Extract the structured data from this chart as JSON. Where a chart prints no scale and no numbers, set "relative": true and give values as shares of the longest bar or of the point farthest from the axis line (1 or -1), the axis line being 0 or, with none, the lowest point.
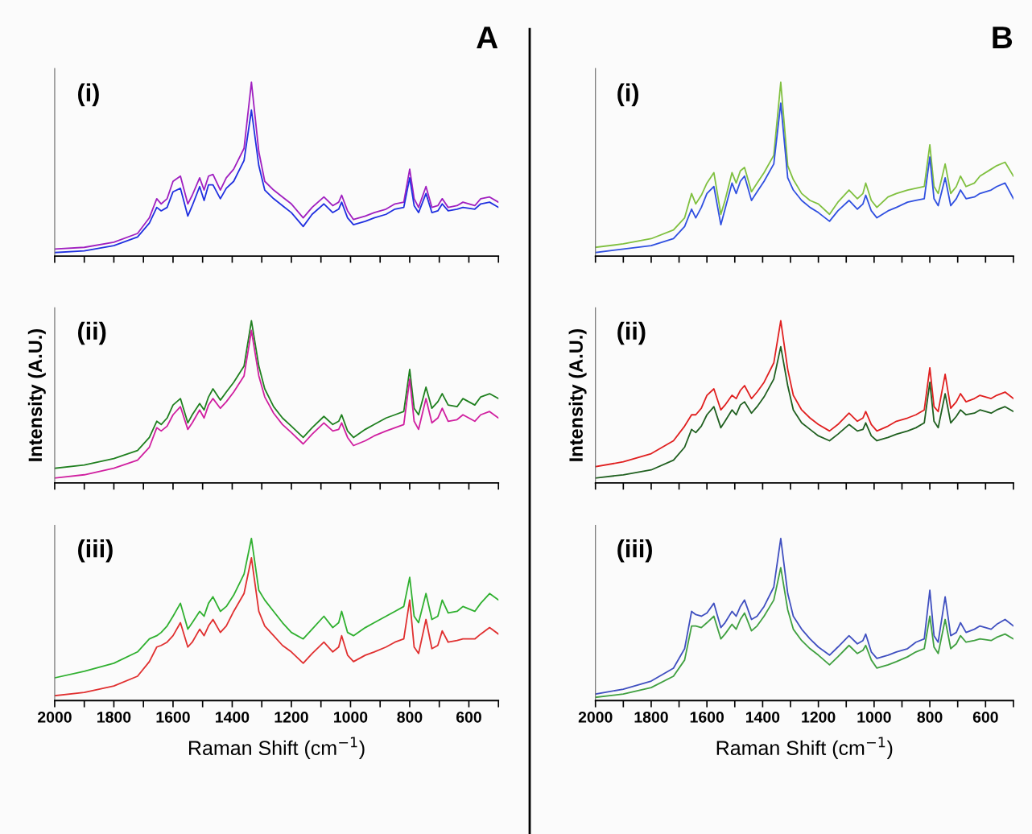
{
  "chart_data": [
    {
      "type": "line",
      "title": "A",
      "relative": true,
      "tick_labels": false,
      "grid": false,
      "xlim": [
        2000,
        500
      ],
      "xticks": [
        2000,
        {
          "value": 1900,
          "label": null
        },
        1800,
        {
          "value": 1700,
          "label": null
        },
        1600,
        {
          "value": 1500,
          "label": null
        },
        1400,
        {
          "value": 1300,
          "label": null
        },
        1200,
        {
          "value": 1100,
          "label": null
        },
        1000,
        {
          "value": 900,
          "label": null
        },
        800,
        {
          "value": 700,
          "label": null
        },
        600,
        {
          "value": 500,
          "label": null
        }
      ],
      "annotations": [
        "(i)"
      ],
      "x": [
        2000,
        1900,
        1800,
        1720,
        1680,
        1655,
        1640,
        1620,
        1600,
        1575,
        1550,
        1535,
        1510,
        1495,
        1480,
        1465,
        1440,
        1420,
        1395,
        1360,
        1335,
        1310,
        1290,
        1260,
        1230,
        1200,
        1160,
        1130,
        1090,
        1060,
        1040,
        1030,
        1010,
        990,
        950,
        920,
        880,
        850,
        820,
        800,
        785,
        770,
        745,
        725,
        705,
        690,
        670,
        640,
        620,
        580,
        560,
        530,
        500
      ],
      "series": [
        {
          "color": "#a020c0",
          "values": [
            0.04,
            0.05,
            0.08,
            0.13,
            0.22,
            0.33,
            0.3,
            0.33,
            0.43,
            0.46,
            0.3,
            0.35,
            0.45,
            0.38,
            0.46,
            0.47,
            0.38,
            0.45,
            0.5,
            0.62,
            1.0,
            0.6,
            0.43,
            0.38,
            0.34,
            0.3,
            0.22,
            0.28,
            0.34,
            0.29,
            0.31,
            0.35,
            0.26,
            0.21,
            0.23,
            0.25,
            0.27,
            0.3,
            0.31,
            0.5,
            0.33,
            0.28,
            0.4,
            0.28,
            0.29,
            0.33,
            0.28,
            0.29,
            0.31,
            0.29,
            0.33,
            0.34,
            0.31
          ]
        },
        {
          "color": "#2030e0",
          "values": [
            0.02,
            0.03,
            0.06,
            0.11,
            0.19,
            0.28,
            0.26,
            0.28,
            0.37,
            0.39,
            0.23,
            0.29,
            0.4,
            0.32,
            0.41,
            0.41,
            0.33,
            0.39,
            0.43,
            0.55,
            0.84,
            0.52,
            0.38,
            0.33,
            0.29,
            0.25,
            0.17,
            0.24,
            0.3,
            0.25,
            0.27,
            0.31,
            0.22,
            0.18,
            0.2,
            0.22,
            0.24,
            0.27,
            0.28,
            0.45,
            0.29,
            0.25,
            0.36,
            0.25,
            0.26,
            0.3,
            0.26,
            0.27,
            0.28,
            0.27,
            0.3,
            0.31,
            0.28
          ]
        }
      ]
    },
    {
      "type": "line",
      "ylabel": "Intensity (A.U.)",
      "relative": true,
      "tick_labels": false,
      "grid": false,
      "xlim": [
        2000,
        500
      ],
      "xticks": [
        2000,
        {
          "value": 1900,
          "label": null
        },
        1800,
        {
          "value": 1700,
          "label": null
        },
        1600,
        {
          "value": 1500,
          "label": null
        },
        1400,
        {
          "value": 1300,
          "label": null
        },
        1200,
        {
          "value": 1100,
          "label": null
        },
        1000,
        {
          "value": 900,
          "label": null
        },
        800,
        {
          "value": 700,
          "label": null
        },
        600,
        {
          "value": 500,
          "label": null
        }
      ],
      "annotations": [
        "(ii)"
      ],
      "x": [
        2000,
        1900,
        1800,
        1720,
        1680,
        1655,
        1640,
        1620,
        1600,
        1575,
        1550,
        1535,
        1510,
        1495,
        1480,
        1465,
        1440,
        1420,
        1395,
        1360,
        1335,
        1310,
        1290,
        1260,
        1230,
        1200,
        1160,
        1130,
        1090,
        1060,
        1040,
        1030,
        1010,
        990,
        950,
        920,
        880,
        850,
        820,
        800,
        785,
        770,
        745,
        725,
        705,
        690,
        670,
        640,
        620,
        580,
        560,
        530,
        500
      ],
      "series": [
        {
          "color": "#208020",
          "values": [
            0.09,
            0.11,
            0.15,
            0.2,
            0.28,
            0.38,
            0.36,
            0.4,
            0.48,
            0.52,
            0.37,
            0.42,
            0.49,
            0.45,
            0.53,
            0.58,
            0.51,
            0.56,
            0.62,
            0.72,
            1.0,
            0.72,
            0.58,
            0.47,
            0.4,
            0.35,
            0.28,
            0.34,
            0.41,
            0.36,
            0.38,
            0.42,
            0.32,
            0.28,
            0.33,
            0.36,
            0.4,
            0.42,
            0.44,
            0.7,
            0.46,
            0.42,
            0.59,
            0.46,
            0.5,
            0.55,
            0.48,
            0.47,
            0.52,
            0.48,
            0.53,
            0.55,
            0.52
          ]
        },
        {
          "color": "#d020a0",
          "values": [
            0.03,
            0.05,
            0.09,
            0.14,
            0.22,
            0.34,
            0.32,
            0.35,
            0.42,
            0.47,
            0.33,
            0.37,
            0.45,
            0.4,
            0.48,
            0.52,
            0.46,
            0.5,
            0.56,
            0.66,
            0.94,
            0.66,
            0.53,
            0.43,
            0.36,
            0.31,
            0.24,
            0.3,
            0.37,
            0.32,
            0.33,
            0.37,
            0.28,
            0.23,
            0.26,
            0.29,
            0.32,
            0.34,
            0.36,
            0.64,
            0.38,
            0.33,
            0.52,
            0.37,
            0.4,
            0.46,
            0.38,
            0.39,
            0.42,
            0.38,
            0.42,
            0.44,
            0.4
          ]
        }
      ]
    },
    {
      "type": "line",
      "xlabel": "Raman Shift (cm$^{−1}$)",
      "relative": true,
      "tick_labels": "x",
      "grid": false,
      "xlim": [
        2000,
        500
      ],
      "xticks": [
        2000,
        {
          "value": 1900,
          "label": null
        },
        1800,
        {
          "value": 1700,
          "label": null
        },
        1600,
        {
          "value": 1500,
          "label": null
        },
        1400,
        {
          "value": 1300,
          "label": null
        },
        1200,
        {
          "value": 1100,
          "label": null
        },
        1000,
        {
          "value": 900,
          "label": null
        },
        800,
        {
          "value": 700,
          "label": null
        },
        600,
        {
          "value": 500,
          "label": null
        }
      ],
      "annotations": [
        "(iii)"
      ],
      "x": [
        2000,
        1900,
        1800,
        1720,
        1680,
        1655,
        1640,
        1620,
        1600,
        1575,
        1550,
        1535,
        1510,
        1495,
        1480,
        1465,
        1440,
        1420,
        1395,
        1360,
        1335,
        1310,
        1290,
        1260,
        1230,
        1200,
        1160,
        1130,
        1090,
        1060,
        1040,
        1030,
        1010,
        990,
        950,
        920,
        880,
        850,
        820,
        800,
        785,
        770,
        745,
        725,
        705,
        690,
        670,
        640,
        620,
        580,
        560,
        530,
        500
      ],
      "series": [
        {
          "color": "#30b030",
          "values": [
            0.14,
            0.18,
            0.23,
            0.3,
            0.38,
            0.4,
            0.42,
            0.46,
            0.52,
            0.6,
            0.44,
            0.48,
            0.55,
            0.52,
            0.6,
            0.64,
            0.55,
            0.58,
            0.65,
            0.78,
            1.0,
            0.68,
            0.62,
            0.55,
            0.48,
            0.42,
            0.38,
            0.44,
            0.52,
            0.45,
            0.48,
            0.55,
            0.42,
            0.4,
            0.45,
            0.48,
            0.52,
            0.55,
            0.58,
            0.76,
            0.52,
            0.48,
            0.66,
            0.5,
            0.52,
            0.62,
            0.54,
            0.55,
            0.58,
            0.55,
            0.6,
            0.66,
            0.62
          ]
        },
        {
          "color": "#e03030",
          "values": [
            0.03,
            0.05,
            0.09,
            0.15,
            0.24,
            0.33,
            0.34,
            0.36,
            0.4,
            0.48,
            0.33,
            0.36,
            0.44,
            0.4,
            0.46,
            0.5,
            0.42,
            0.46,
            0.55,
            0.66,
            0.88,
            0.55,
            0.46,
            0.4,
            0.34,
            0.3,
            0.23,
            0.29,
            0.36,
            0.3,
            0.33,
            0.4,
            0.28,
            0.24,
            0.28,
            0.3,
            0.33,
            0.36,
            0.38,
            0.62,
            0.33,
            0.29,
            0.5,
            0.32,
            0.34,
            0.43,
            0.36,
            0.37,
            0.38,
            0.38,
            0.41,
            0.45,
            0.41
          ]
        }
      ]
    },
    {
      "type": "line",
      "title": "B",
      "relative": true,
      "tick_labels": false,
      "grid": false,
      "xlim": [
        2000,
        500
      ],
      "xticks": [
        2000,
        {
          "value": 1900,
          "label": null
        },
        1800,
        {
          "value": 1700,
          "label": null
        },
        1600,
        {
          "value": 1500,
          "label": null
        },
        1400,
        {
          "value": 1300,
          "label": null
        },
        1200,
        {
          "value": 1100,
          "label": null
        },
        1000,
        {
          "value": 900,
          "label": null
        },
        800,
        {
          "value": 700,
          "label": null
        },
        600,
        {
          "value": 500,
          "label": null
        }
      ],
      "annotations": [
        "(i)"
      ],
      "x": [
        2000,
        1900,
        1800,
        1720,
        1680,
        1655,
        1640,
        1620,
        1600,
        1575,
        1550,
        1535,
        1510,
        1495,
        1480,
        1465,
        1440,
        1420,
        1395,
        1360,
        1335,
        1310,
        1290,
        1260,
        1230,
        1200,
        1160,
        1130,
        1090,
        1060,
        1040,
        1030,
        1010,
        990,
        950,
        920,
        880,
        850,
        820,
        800,
        785,
        770,
        745,
        725,
        705,
        690,
        670,
        640,
        620,
        580,
        560,
        530,
        500
      ],
      "series": [
        {
          "color": "#80c040",
          "values": [
            0.05,
            0.07,
            0.1,
            0.15,
            0.22,
            0.36,
            0.3,
            0.35,
            0.42,
            0.48,
            0.24,
            0.32,
            0.48,
            0.42,
            0.49,
            0.51,
            0.37,
            0.42,
            0.48,
            0.58,
            1.0,
            0.52,
            0.44,
            0.36,
            0.32,
            0.3,
            0.24,
            0.31,
            0.38,
            0.33,
            0.36,
            0.42,
            0.32,
            0.28,
            0.34,
            0.36,
            0.38,
            0.39,
            0.4,
            0.64,
            0.4,
            0.36,
            0.53,
            0.36,
            0.4,
            0.46,
            0.4,
            0.42,
            0.46,
            0.5,
            0.52,
            0.54,
            0.46
          ]
        },
        {
          "color": "#3050e0",
          "values": [
            0.02,
            0.04,
            0.06,
            0.1,
            0.17,
            0.27,
            0.22,
            0.28,
            0.36,
            0.4,
            0.18,
            0.27,
            0.42,
            0.36,
            0.43,
            0.46,
            0.32,
            0.37,
            0.43,
            0.53,
            0.88,
            0.45,
            0.38,
            0.32,
            0.28,
            0.25,
            0.2,
            0.26,
            0.32,
            0.27,
            0.3,
            0.35,
            0.26,
            0.22,
            0.26,
            0.28,
            0.31,
            0.32,
            0.33,
            0.57,
            0.33,
            0.29,
            0.45,
            0.29,
            0.33,
            0.38,
            0.33,
            0.34,
            0.36,
            0.38,
            0.4,
            0.42,
            0.33
          ]
        }
      ]
    },
    {
      "type": "line",
      "ylabel": "Intensity (A.U.)",
      "relative": true,
      "tick_labels": false,
      "grid": false,
      "xlim": [
        2000,
        500
      ],
      "xticks": [
        2000,
        {
          "value": 1900,
          "label": null
        },
        1800,
        {
          "value": 1700,
          "label": null
        },
        1600,
        {
          "value": 1500,
          "label": null
        },
        1400,
        {
          "value": 1300,
          "label": null
        },
        1200,
        {
          "value": 1100,
          "label": null
        },
        1000,
        {
          "value": 900,
          "label": null
        },
        800,
        {
          "value": 700,
          "label": null
        },
        600,
        {
          "value": 500,
          "label": null
        }
      ],
      "annotations": [
        "(ii)"
      ],
      "x": [
        2000,
        1900,
        1800,
        1720,
        1680,
        1655,
        1640,
        1620,
        1600,
        1575,
        1550,
        1535,
        1510,
        1495,
        1480,
        1465,
        1440,
        1420,
        1395,
        1360,
        1335,
        1310,
        1290,
        1260,
        1230,
        1200,
        1160,
        1130,
        1090,
        1060,
        1040,
        1030,
        1010,
        990,
        950,
        920,
        880,
        850,
        820,
        800,
        785,
        770,
        745,
        725,
        705,
        690,
        670,
        640,
        620,
        580,
        560,
        530,
        500
      ],
      "series": [
        {
          "color": "#e02020",
          "values": [
            0.1,
            0.13,
            0.18,
            0.26,
            0.35,
            0.42,
            0.42,
            0.46,
            0.54,
            0.58,
            0.45,
            0.48,
            0.54,
            0.52,
            0.57,
            0.6,
            0.52,
            0.56,
            0.62,
            0.74,
            1.0,
            0.7,
            0.54,
            0.45,
            0.4,
            0.36,
            0.32,
            0.36,
            0.43,
            0.38,
            0.4,
            0.44,
            0.36,
            0.32,
            0.35,
            0.38,
            0.4,
            0.42,
            0.45,
            0.71,
            0.47,
            0.44,
            0.67,
            0.46,
            0.5,
            0.55,
            0.5,
            0.52,
            0.54,
            0.52,
            0.54,
            0.56,
            0.52
          ]
        },
        {
          "color": "#206020",
          "values": [
            0.03,
            0.05,
            0.08,
            0.14,
            0.22,
            0.33,
            0.31,
            0.35,
            0.42,
            0.47,
            0.34,
            0.38,
            0.45,
            0.42,
            0.48,
            0.5,
            0.43,
            0.47,
            0.53,
            0.64,
            0.84,
            0.6,
            0.45,
            0.37,
            0.33,
            0.29,
            0.26,
            0.3,
            0.36,
            0.32,
            0.33,
            0.37,
            0.29,
            0.26,
            0.28,
            0.3,
            0.32,
            0.34,
            0.37,
            0.62,
            0.38,
            0.34,
            0.55,
            0.37,
            0.41,
            0.45,
            0.42,
            0.43,
            0.45,
            0.43,
            0.45,
            0.47,
            0.44
          ]
        }
      ]
    },
    {
      "type": "line",
      "xlabel": "Raman Shift (cm$^{−1}$)",
      "relative": true,
      "tick_labels": "x",
      "grid": false,
      "xlim": [
        2000,
        500
      ],
      "xticks": [
        2000,
        {
          "value": 1900,
          "label": null
        },
        1800,
        {
          "value": 1700,
          "label": null
        },
        1600,
        {
          "value": 1500,
          "label": null
        },
        1400,
        {
          "value": 1300,
          "label": null
        },
        1200,
        {
          "value": 1100,
          "label": null
        },
        1000,
        {
          "value": 900,
          "label": null
        },
        800,
        {
          "value": 700,
          "label": null
        },
        600,
        {
          "value": 500,
          "label": null
        }
      ],
      "annotations": [
        "(iii)"
      ],
      "x": [
        2000,
        1900,
        1800,
        1720,
        1680,
        1655,
        1640,
        1620,
        1600,
        1575,
        1550,
        1535,
        1510,
        1495,
        1480,
        1465,
        1440,
        1420,
        1395,
        1360,
        1335,
        1310,
        1290,
        1260,
        1230,
        1200,
        1160,
        1130,
        1090,
        1060,
        1040,
        1030,
        1010,
        990,
        950,
        920,
        880,
        850,
        820,
        800,
        785,
        770,
        745,
        725,
        705,
        690,
        670,
        640,
        620,
        580,
        560,
        530,
        500
      ],
      "series": [
        {
          "color": "#4050c0",
          "values": [
            0.04,
            0.07,
            0.12,
            0.2,
            0.32,
            0.55,
            0.53,
            0.52,
            0.54,
            0.6,
            0.45,
            0.48,
            0.55,
            0.52,
            0.58,
            0.62,
            0.5,
            0.52,
            0.58,
            0.7,
            1.0,
            0.66,
            0.52,
            0.44,
            0.38,
            0.33,
            0.28,
            0.33,
            0.4,
            0.35,
            0.37,
            0.41,
            0.3,
            0.26,
            0.28,
            0.3,
            0.32,
            0.36,
            0.38,
            0.68,
            0.4,
            0.36,
            0.64,
            0.4,
            0.42,
            0.48,
            0.42,
            0.44,
            0.46,
            0.44,
            0.47,
            0.5,
            0.46
          ]
        },
        {
          "color": "#40a040",
          "values": [
            0.02,
            0.04,
            0.08,
            0.15,
            0.25,
            0.46,
            0.46,
            0.45,
            0.48,
            0.52,
            0.38,
            0.41,
            0.47,
            0.44,
            0.5,
            0.54,
            0.43,
            0.46,
            0.52,
            0.62,
            0.82,
            0.56,
            0.44,
            0.37,
            0.32,
            0.28,
            0.22,
            0.27,
            0.34,
            0.29,
            0.31,
            0.34,
            0.25,
            0.2,
            0.22,
            0.24,
            0.27,
            0.3,
            0.32,
            0.52,
            0.33,
            0.29,
            0.5,
            0.32,
            0.35,
            0.4,
            0.36,
            0.37,
            0.38,
            0.37,
            0.39,
            0.41,
            0.38
          ]
        }
      ]
    }
  ]
}
